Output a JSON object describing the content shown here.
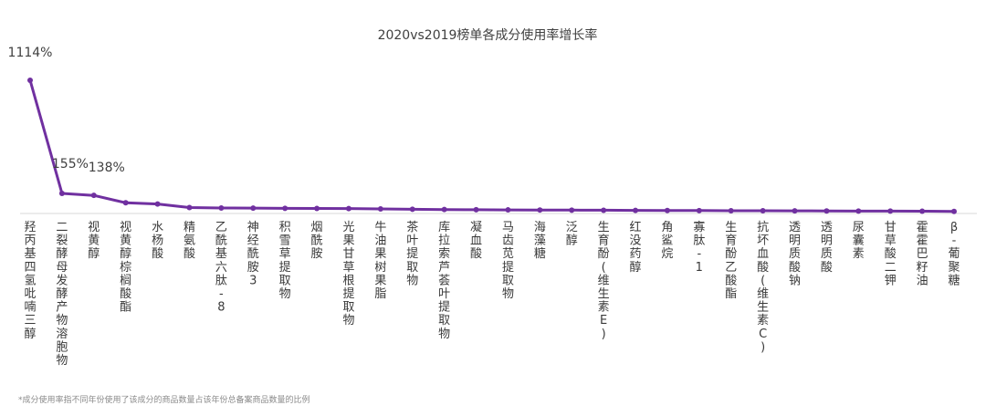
{
  "chart_data": {
    "type": "line",
    "title": "2020vs2019榜单各成分使用率增长率",
    "xlabel": "",
    "ylabel": "",
    "ylim": [
      0,
      1300
    ],
    "grid": false,
    "legend": "none",
    "categories": [
      "羟丙基四氢吡喃三醇",
      "二裂酵母发酵产物溶胞物",
      "视黄醇",
      "视黄醇棕榈酸酯",
      "水杨酸",
      "精氨酸",
      "乙酰基六肽-8",
      "神经酰胺3",
      "积雪草提取物",
      "烟酰胺",
      "光果甘草根提取物",
      "牛油果树果脂",
      "茶叶提取物",
      "库拉索芦荟叶提取物",
      "凝血酸",
      "马齿苋提取物",
      "海藻糖",
      "泛醇",
      "生育酚(维生素E)",
      "红没药醇",
      "角鲨烷",
      "寡肽-1",
      "生育酚乙酸酯",
      "抗坏血酸(维生素C)",
      "透明质酸钠",
      "透明质酸",
      "尿囊素",
      "甘草酸二钾",
      "霍霍巴籽油",
      "β-葡聚糖"
    ],
    "series": [
      {
        "values": [
          1114,
          155,
          138,
          75,
          65,
          35,
          31,
          30,
          28,
          27,
          26,
          23,
          20,
          18,
          16,
          15,
          14,
          13,
          12,
          11,
          10,
          9,
          8,
          8,
          7,
          6,
          5,
          5,
          4,
          2
        ],
        "color": "#7030A0"
      }
    ],
    "data_labels": [
      "1114%",
      "155%",
      "138%"
    ],
    "footnote": "*成分使用率指不同年份使用了该成分的商品数量占该年份总备案商品数量的比例"
  }
}
